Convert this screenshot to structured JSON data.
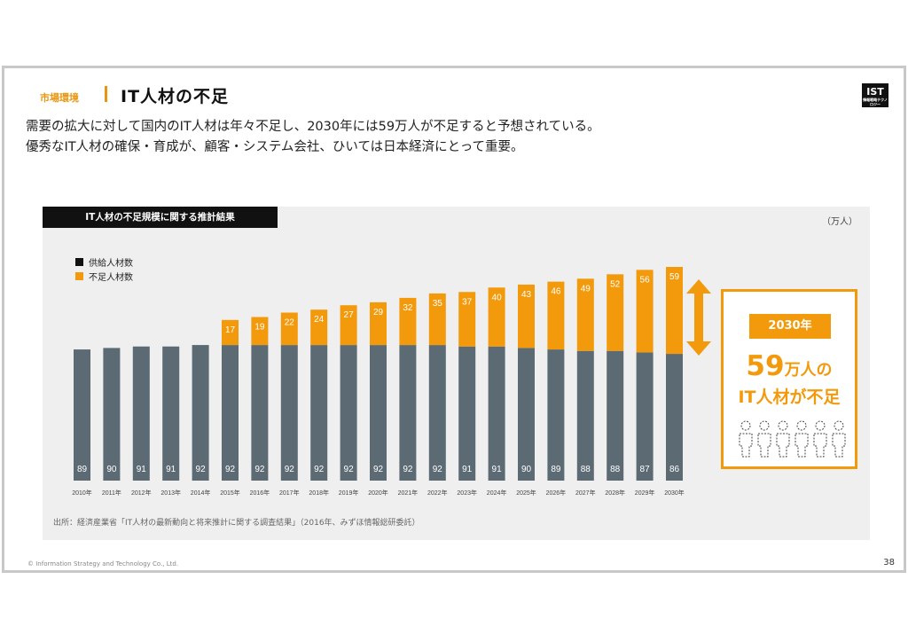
{
  "header": {
    "section": "市場環境",
    "title": "IT人材の不足",
    "logo": "IST",
    "logo_sub": "情報戦略テクノロジー"
  },
  "lead": {
    "line1": "需要の拡大に対して国内のIT人材は年々不足し、2030年には59万人が不足すると予想されている。",
    "line2": "優秀なIT人材の確保・育成が、顧客・システム会社、ひいては日本経済にとって重要。"
  },
  "panel": {
    "title": "IT人材の不足規模に関する推計結果",
    "unit": "（万人）",
    "source": "出所：経済産業省「IT人材の最新動向と将来推計に関する調査結果」（2016年、みずほ情報総研委託）"
  },
  "callout": {
    "year": "2030年",
    "number": "59",
    "suffix": "万人の",
    "line2": "IT人材が不足"
  },
  "colors": {
    "accent": "#f29a0b",
    "supply": "#5c6a73"
  },
  "chart_data": {
    "type": "bar",
    "stacked": true,
    "categories": [
      "2010年",
      "2011年",
      "2012年",
      "2013年",
      "2014年",
      "2015年",
      "2016年",
      "2017年",
      "2018年",
      "2019年",
      "2020年",
      "2021年",
      "2022年",
      "2023年",
      "2024年",
      "2025年",
      "2026年",
      "2027年",
      "2028年",
      "2029年",
      "2030年"
    ],
    "series": [
      {
        "name": "供給人材数",
        "color": "#5c6a73",
        "values": [
          89,
          90,
          91,
          91,
          92,
          92,
          92,
          92,
          92,
          92,
          92,
          92,
          92,
          91,
          91,
          90,
          89,
          88,
          88,
          87,
          86
        ]
      },
      {
        "name": "不足人材数",
        "color": "#f29a0b",
        "values": [
          0,
          0,
          0,
          0,
          0,
          17,
          19,
          22,
          24,
          27,
          29,
          32,
          35,
          37,
          40,
          43,
          46,
          49,
          52,
          56,
          59
        ]
      }
    ],
    "ylim": [
      0,
      145
    ]
  },
  "footer": {
    "copyright": "© Information Strategy and Technology Co., Ltd.",
    "page": "38"
  }
}
